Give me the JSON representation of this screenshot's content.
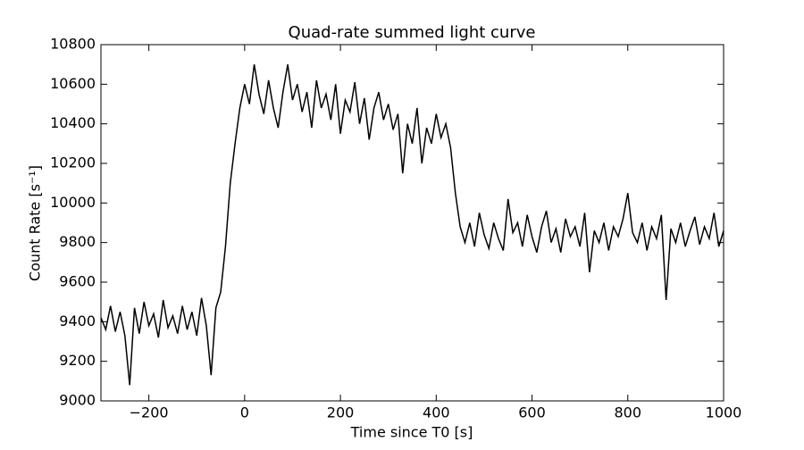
{
  "chart_data": {
    "type": "line",
    "title": "Quad-rate summed light curve",
    "xlabel": "Time since T0 [s]",
    "ylabel": "Count Rate [s⁻¹]",
    "xlim": [
      -300,
      1000
    ],
    "xticks": [
      {
        "value": -200,
        "label": "−200"
      },
      0,
      200,
      400,
      600,
      800,
      1000
    ],
    "ylim": [
      9000,
      10800
    ],
    "yticks": [
      9000,
      9200,
      9400,
      9600,
      9800,
      10000,
      10200,
      10400,
      10600,
      10800
    ],
    "grid": false,
    "x": [
      -300,
      -290,
      -280,
      -270,
      -260,
      -250,
      -240,
      -230,
      -220,
      -210,
      -200,
      -190,
      -180,
      -170,
      -160,
      -150,
      -140,
      -130,
      -120,
      -110,
      -100,
      -90,
      -80,
      -70,
      -60,
      -50,
      -40,
      -30,
      -20,
      -10,
      0,
      10,
      20,
      30,
      40,
      50,
      60,
      70,
      80,
      90,
      100,
      110,
      120,
      130,
      140,
      150,
      160,
      170,
      180,
      190,
      200,
      210,
      220,
      230,
      240,
      250,
      260,
      270,
      280,
      290,
      300,
      310,
      320,
      330,
      340,
      350,
      360,
      370,
      380,
      390,
      400,
      410,
      420,
      430,
      440,
      450,
      460,
      470,
      480,
      490,
      500,
      510,
      520,
      530,
      540,
      550,
      560,
      570,
      580,
      590,
      600,
      610,
      620,
      630,
      640,
      650,
      660,
      670,
      680,
      690,
      700,
      710,
      720,
      730,
      740,
      750,
      760,
      770,
      780,
      790,
      800,
      810,
      820,
      830,
      840,
      850,
      860,
      870,
      880,
      890,
      900,
      910,
      920,
      930,
      940,
      950,
      960,
      970,
      980,
      990,
      1000
    ],
    "series": [
      {
        "color": "#000000",
        "values": [
          9420,
          9360,
          9480,
          9350,
          9450,
          9330,
          9080,
          9470,
          9340,
          9500,
          9380,
          9440,
          9320,
          9510,
          9370,
          9430,
          9340,
          9480,
          9360,
          9450,
          9330,
          9520,
          9380,
          9130,
          9470,
          9550,
          9780,
          10100,
          10300,
          10480,
          10600,
          10500,
          10700,
          10550,
          10450,
          10620,
          10480,
          10380,
          10560,
          10700,
          10520,
          10600,
          10460,
          10560,
          10380,
          10620,
          10480,
          10550,
          10420,
          10600,
          10350,
          10520,
          10460,
          10610,
          10400,
          10530,
          10320,
          10480,
          10560,
          10420,
          10500,
          10370,
          10450,
          10150,
          10400,
          10300,
          10480,
          10200,
          10380,
          10300,
          10450,
          10330,
          10400,
          10280,
          10050,
          9880,
          9800,
          9900,
          9780,
          9950,
          9840,
          9770,
          9900,
          9820,
          9760,
          10020,
          9850,
          9900,
          9780,
          9940,
          9830,
          9750,
          9880,
          9960,
          9800,
          9870,
          9750,
          9920,
          9830,
          9880,
          9780,
          9950,
          9650,
          9860,
          9800,
          9900,
          9760,
          9880,
          9830,
          9920,
          10050,
          9850,
          9800,
          9900,
          9760,
          9880,
          9820,
          9940,
          9510,
          9870,
          9800,
          9900,
          9780,
          9860,
          9930,
          9790,
          9880,
          9820,
          9950,
          9780,
          9860
        ]
      }
    ]
  }
}
